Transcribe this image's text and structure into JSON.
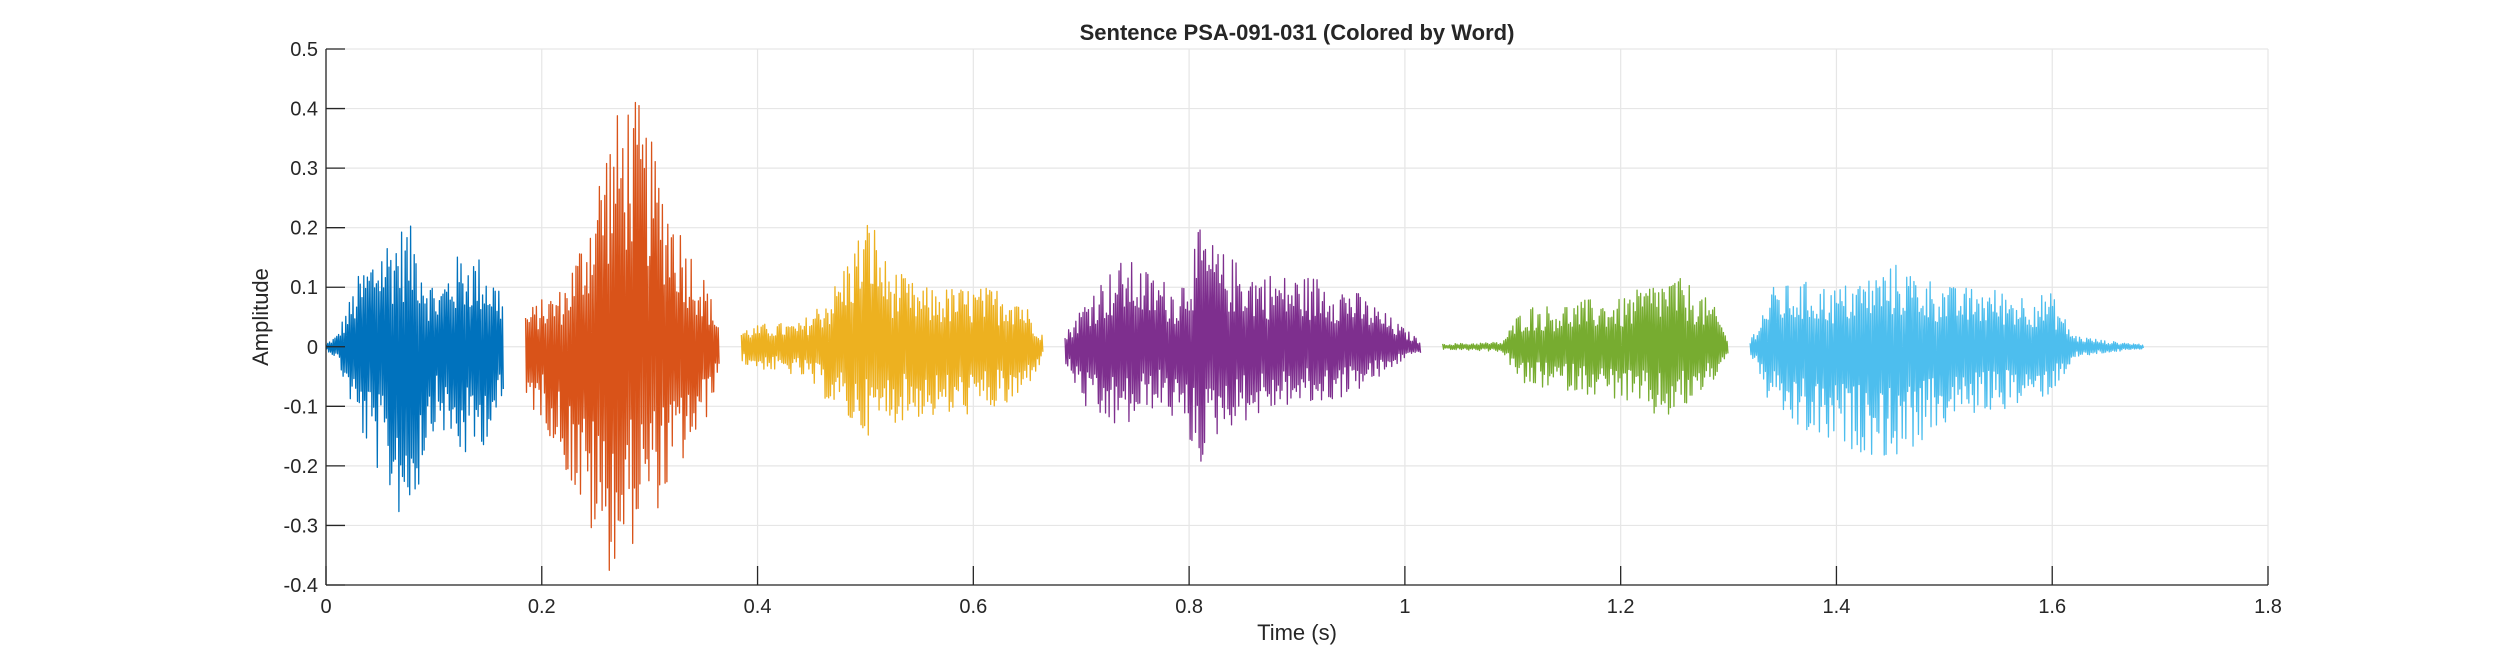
{
  "chart_data": {
    "type": "line",
    "title": "Sentence PSA-091-031 (Colored by Word)",
    "xlabel": "Time (s)",
    "ylabel": "Amplitude",
    "xlim": [
      0,
      1.8
    ],
    "ylim": [
      -0.4,
      0.5
    ],
    "xticks": [
      0,
      0.2,
      0.4,
      0.6,
      0.8,
      1,
      1.2,
      1.4,
      1.6,
      1.8
    ],
    "xtick_labels": [
      "0",
      "0.2",
      "0.4",
      "0.6",
      "0.8",
      "1",
      "1.2",
      "1.4",
      "1.6",
      "1.8"
    ],
    "yticks": [
      -0.4,
      -0.3,
      -0.2,
      -0.1,
      0,
      0.1,
      0.2,
      0.3,
      0.4,
      0.5
    ],
    "ytick_labels": [
      "-0.4",
      "-0.3",
      "-0.2",
      "-0.1",
      "0",
      "0.1",
      "0.2",
      "0.3",
      "0.4",
      "0.5"
    ],
    "grid": true,
    "series": [
      {
        "color": "#0072BD",
        "t_start": 0.0,
        "t_end": 0.165,
        "envelope": {
          "t": [
            0.0,
            0.01,
            0.03,
            0.05,
            0.065,
            0.075,
            0.085,
            0.095,
            0.105,
            0.115,
            0.125,
            0.135,
            0.145,
            0.155,
            0.165
          ],
          "upper": [
            0.005,
            0.02,
            0.12,
            0.18,
            0.2,
            0.21,
            0.19,
            0.12,
            0.1,
            0.14,
            0.16,
            0.16,
            0.15,
            0.12,
            0.1
          ],
          "lower": [
            -0.005,
            -0.02,
            -0.14,
            -0.22,
            -0.28,
            -0.3,
            -0.25,
            -0.15,
            -0.13,
            -0.17,
            -0.19,
            -0.19,
            -0.17,
            -0.13,
            -0.12
          ]
        }
      },
      {
        "color": "#D95319",
        "t_start": 0.185,
        "t_end": 0.365,
        "envelope": {
          "t": [
            0.185,
            0.2,
            0.22,
            0.24,
            0.26,
            0.28,
            0.29,
            0.31,
            0.33,
            0.35,
            0.365
          ],
          "upper": [
            0.06,
            0.08,
            0.1,
            0.2,
            0.36,
            0.43,
            0.41,
            0.3,
            0.2,
            0.12,
            0.04
          ],
          "lower": [
            -0.1,
            -0.12,
            -0.2,
            -0.3,
            -0.38,
            -0.36,
            -0.3,
            -0.27,
            -0.2,
            -0.14,
            -0.04
          ]
        }
      },
      {
        "color": "#EDB120",
        "t_start": 0.385,
        "t_end": 0.665,
        "envelope": {
          "t": [
            0.385,
            0.41,
            0.44,
            0.47,
            0.49,
            0.505,
            0.52,
            0.55,
            0.58,
            0.61,
            0.64,
            0.665
          ],
          "upper": [
            0.03,
            0.04,
            0.04,
            0.1,
            0.18,
            0.23,
            0.14,
            0.1,
            0.1,
            0.1,
            0.1,
            0.02
          ],
          "lower": [
            -0.03,
            -0.04,
            -0.05,
            -0.1,
            -0.14,
            -0.15,
            -0.13,
            -0.12,
            -0.12,
            -0.11,
            -0.1,
            -0.02
          ]
        }
      },
      {
        "color": "#7E2F8E",
        "t_start": 0.685,
        "t_end": 1.015,
        "envelope": {
          "t": [
            0.685,
            0.71,
            0.74,
            0.77,
            0.79,
            0.81,
            0.83,
            0.86,
            0.89,
            0.92,
            0.95,
            0.98,
            1.0,
            1.015
          ],
          "upper": [
            0.02,
            0.1,
            0.15,
            0.12,
            0.1,
            0.2,
            0.16,
            0.13,
            0.12,
            0.12,
            0.1,
            0.06,
            0.03,
            0.01
          ],
          "lower": [
            -0.03,
            -0.13,
            -0.14,
            -0.1,
            -0.13,
            -0.2,
            -0.14,
            -0.12,
            -0.1,
            -0.1,
            -0.08,
            -0.05,
            -0.02,
            -0.01
          ]
        }
      },
      {
        "color": "#77AC30",
        "t_start": 1.035,
        "t_end": 1.3,
        "envelope": {
          "t": [
            1.035,
            1.06,
            1.09,
            1.11,
            1.14,
            1.17,
            1.2,
            1.23,
            1.25,
            1.27,
            1.29,
            1.3
          ],
          "upper": [
            0.005,
            0.006,
            0.008,
            0.07,
            0.07,
            0.08,
            0.08,
            0.11,
            0.12,
            0.1,
            0.06,
            0.01
          ],
          "lower": [
            -0.005,
            -0.006,
            -0.008,
            -0.07,
            -0.07,
            -0.08,
            -0.09,
            -0.12,
            -0.12,
            -0.09,
            -0.05,
            -0.01
          ]
        }
      },
      {
        "color": "#4DBEEE",
        "t_start": 1.32,
        "t_end": 1.685,
        "envelope": {
          "t": [
            1.32,
            1.34,
            1.37,
            1.4,
            1.43,
            1.455,
            1.48,
            1.51,
            1.54,
            1.57,
            1.6,
            1.62,
            1.65,
            1.685
          ],
          "upper": [
            0.01,
            0.1,
            0.11,
            0.1,
            0.12,
            0.14,
            0.12,
            0.1,
            0.1,
            0.09,
            0.09,
            0.02,
            0.01,
            0.004
          ],
          "lower": [
            -0.01,
            -0.11,
            -0.15,
            -0.17,
            -0.18,
            -0.19,
            -0.16,
            -0.12,
            -0.11,
            -0.1,
            -0.08,
            -0.02,
            -0.01,
            -0.004
          ]
        }
      }
    ]
  }
}
